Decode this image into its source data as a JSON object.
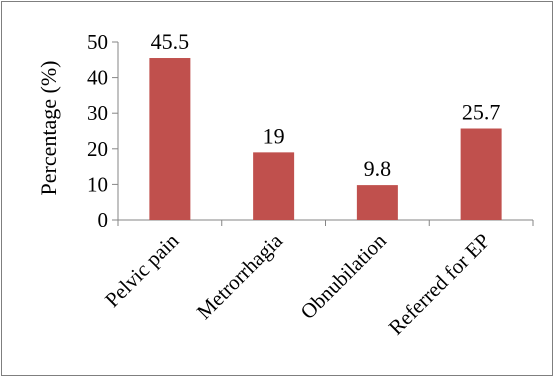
{
  "chart_data": {
    "type": "bar",
    "categories": [
      "Pelvic pain",
      "Metrorrhagia",
      "Obnubilation",
      "Referred for EP"
    ],
    "values": [
      45.5,
      19,
      9.8,
      25.7
    ],
    "value_labels": [
      "45.5",
      "19",
      "9.8",
      "25.7"
    ],
    "title": "",
    "xlabel": "",
    "ylabel": "Percentage (%)",
    "ylim": [
      0,
      50
    ],
    "yticks": [
      0,
      10,
      20,
      30,
      40,
      50
    ],
    "grid": false,
    "legend": "none",
    "bar_color": "#c0504d"
  }
}
